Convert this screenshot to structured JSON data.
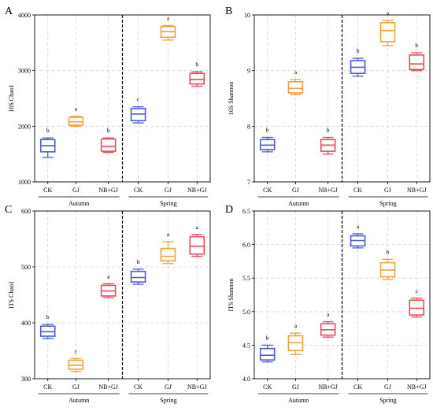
{
  "colors": {
    "CK": "#4b5bd8",
    "GJ": "#f2a23a",
    "NB+GJ": "#ea4a5c",
    "grid": "#d6d6d6",
    "divider": "#000000"
  },
  "chart_data": [
    {
      "type": "box",
      "panel": "A",
      "ylabel": "16S Chao1",
      "ylim": [
        1000,
        4000
      ],
      "yticks": [
        1000,
        2000,
        3000,
        4000
      ],
      "categories": [
        "CK",
        "GJ",
        "NB+GJ",
        "CK",
        "GJ",
        "NB+GJ"
      ],
      "groups": [
        {
          "label": "Autumn",
          "span": [
            0,
            2
          ]
        },
        {
          "label": "Spring",
          "span": [
            3,
            5
          ]
        }
      ],
      "boxes": [
        {
          "category": "CK",
          "group": "Autumn",
          "min": 1440,
          "q1": 1540,
          "median": 1650,
          "q3": 1760,
          "max": 1790,
          "sig": "b"
        },
        {
          "category": "GJ",
          "group": "Autumn",
          "min": 2000,
          "q1": 2020,
          "median": 2080,
          "q3": 2160,
          "max": 2180,
          "sig": "a"
        },
        {
          "category": "NB+GJ",
          "group": "Autumn",
          "min": 1530,
          "q1": 1550,
          "median": 1640,
          "q3": 1770,
          "max": 1790,
          "sig": "b"
        },
        {
          "category": "CK",
          "group": "Spring",
          "min": 2060,
          "q1": 2100,
          "median": 2220,
          "q3": 2320,
          "max": 2350,
          "sig": "c"
        },
        {
          "category": "GJ",
          "group": "Spring",
          "min": 3550,
          "q1": 3600,
          "median": 3700,
          "q3": 3790,
          "max": 3810,
          "sig": "a"
        },
        {
          "category": "NB+GJ",
          "group": "Spring",
          "min": 2720,
          "q1": 2760,
          "median": 2840,
          "q3": 2950,
          "max": 2980,
          "sig": "b"
        }
      ]
    },
    {
      "type": "box",
      "panel": "B",
      "ylabel": "16S Shannon",
      "ylim": [
        7,
        10
      ],
      "yticks": [
        7,
        8,
        9,
        10
      ],
      "categories": [
        "CK",
        "GJ",
        "NB+GJ",
        "CK",
        "GJ",
        "NB+GJ"
      ],
      "groups": [
        {
          "label": "Autumn",
          "span": [
            0,
            2
          ]
        },
        {
          "label": "Spring",
          "span": [
            3,
            5
          ]
        }
      ],
      "boxes": [
        {
          "category": "CK",
          "group": "Autumn",
          "min": 7.54,
          "q1": 7.58,
          "median": 7.66,
          "q3": 7.76,
          "max": 7.8,
          "sig": "b"
        },
        {
          "category": "GJ",
          "group": "Autumn",
          "min": 8.57,
          "q1": 8.6,
          "median": 8.68,
          "q3": 8.8,
          "max": 8.84,
          "sig": "a"
        },
        {
          "category": "NB+GJ",
          "group": "Autumn",
          "min": 7.5,
          "q1": 7.55,
          "median": 7.66,
          "q3": 7.76,
          "max": 7.8,
          "sig": "b"
        },
        {
          "category": "CK",
          "group": "Spring",
          "min": 8.9,
          "q1": 8.95,
          "median": 9.06,
          "q3": 9.18,
          "max": 9.22,
          "sig": "b"
        },
        {
          "category": "GJ",
          "group": "Spring",
          "min": 9.45,
          "q1": 9.52,
          "median": 9.72,
          "q3": 9.86,
          "max": 9.9,
          "sig": "a"
        },
        {
          "category": "NB+GJ",
          "group": "Spring",
          "min": 9.0,
          "q1": 9.02,
          "median": 9.12,
          "q3": 9.28,
          "max": 9.32,
          "sig": "b"
        }
      ]
    },
    {
      "type": "box",
      "panel": "C",
      "ylabel": "ITS Chao1",
      "ylim": [
        300,
        600
      ],
      "yticks": [
        300,
        400,
        500,
        600
      ],
      "categories": [
        "CK",
        "GJ",
        "NB+GJ",
        "CK",
        "GJ",
        "NB+GJ"
      ],
      "groups": [
        {
          "label": "Autumn",
          "span": [
            0,
            2
          ]
        },
        {
          "label": "Spring",
          "span": [
            3,
            5
          ]
        }
      ],
      "boxes": [
        {
          "category": "CK",
          "group": "Autumn",
          "min": 372,
          "q1": 376,
          "median": 384,
          "q3": 394,
          "max": 397,
          "sig": "b"
        },
        {
          "category": "GJ",
          "group": "Autumn",
          "min": 313,
          "q1": 317,
          "median": 324,
          "q3": 333,
          "max": 336,
          "sig": "c"
        },
        {
          "category": "NB+GJ",
          "group": "Autumn",
          "min": 445,
          "q1": 448,
          "median": 457,
          "q3": 467,
          "max": 470,
          "sig": "a"
        },
        {
          "category": "CK",
          "group": "Spring",
          "min": 469,
          "q1": 473,
          "median": 481,
          "q3": 492,
          "max": 496,
          "sig": "b"
        },
        {
          "category": "GJ",
          "group": "Spring",
          "min": 506,
          "q1": 511,
          "median": 519,
          "q3": 533,
          "max": 545,
          "sig": "a"
        },
        {
          "category": "NB+GJ",
          "group": "Spring",
          "min": 519,
          "q1": 523,
          "median": 537,
          "q3": 554,
          "max": 558,
          "sig": "a"
        }
      ]
    },
    {
      "type": "box",
      "panel": "D",
      "ylabel": "ITS Shannon",
      "ylim": [
        4.0,
        6.5
      ],
      "yticks": [
        4.0,
        4.5,
        5.0,
        5.5,
        6.0,
        6.5
      ],
      "categories": [
        "CK",
        "GJ",
        "NB+GJ",
        "CK",
        "GJ",
        "NB+GJ"
      ],
      "groups": [
        {
          "label": "Autumn",
          "span": [
            0,
            2
          ]
        },
        {
          "label": "Spring",
          "span": [
            3,
            5
          ]
        }
      ],
      "boxes": [
        {
          "category": "CK",
          "group": "Autumn",
          "min": 4.25,
          "q1": 4.28,
          "median": 4.35,
          "q3": 4.45,
          "max": 4.5,
          "sig": "b"
        },
        {
          "category": "GJ",
          "group": "Autumn",
          "min": 4.36,
          "q1": 4.42,
          "median": 4.54,
          "q3": 4.64,
          "max": 4.68,
          "sig": "a"
        },
        {
          "category": "NB+GJ",
          "group": "Autumn",
          "min": 4.62,
          "q1": 4.65,
          "median": 4.73,
          "q3": 4.82,
          "max": 4.85,
          "sig": "a"
        },
        {
          "category": "CK",
          "group": "Spring",
          "min": 5.95,
          "q1": 5.98,
          "median": 6.06,
          "q3": 6.13,
          "max": 6.16,
          "sig": "a"
        },
        {
          "category": "GJ",
          "group": "Spring",
          "min": 5.48,
          "q1": 5.52,
          "median": 5.62,
          "q3": 5.73,
          "max": 5.78,
          "sig": "b"
        },
        {
          "category": "NB+GJ",
          "group": "Spring",
          "min": 4.92,
          "q1": 4.95,
          "median": 5.05,
          "q3": 5.17,
          "max": 5.2,
          "sig": "c"
        }
      ]
    }
  ]
}
